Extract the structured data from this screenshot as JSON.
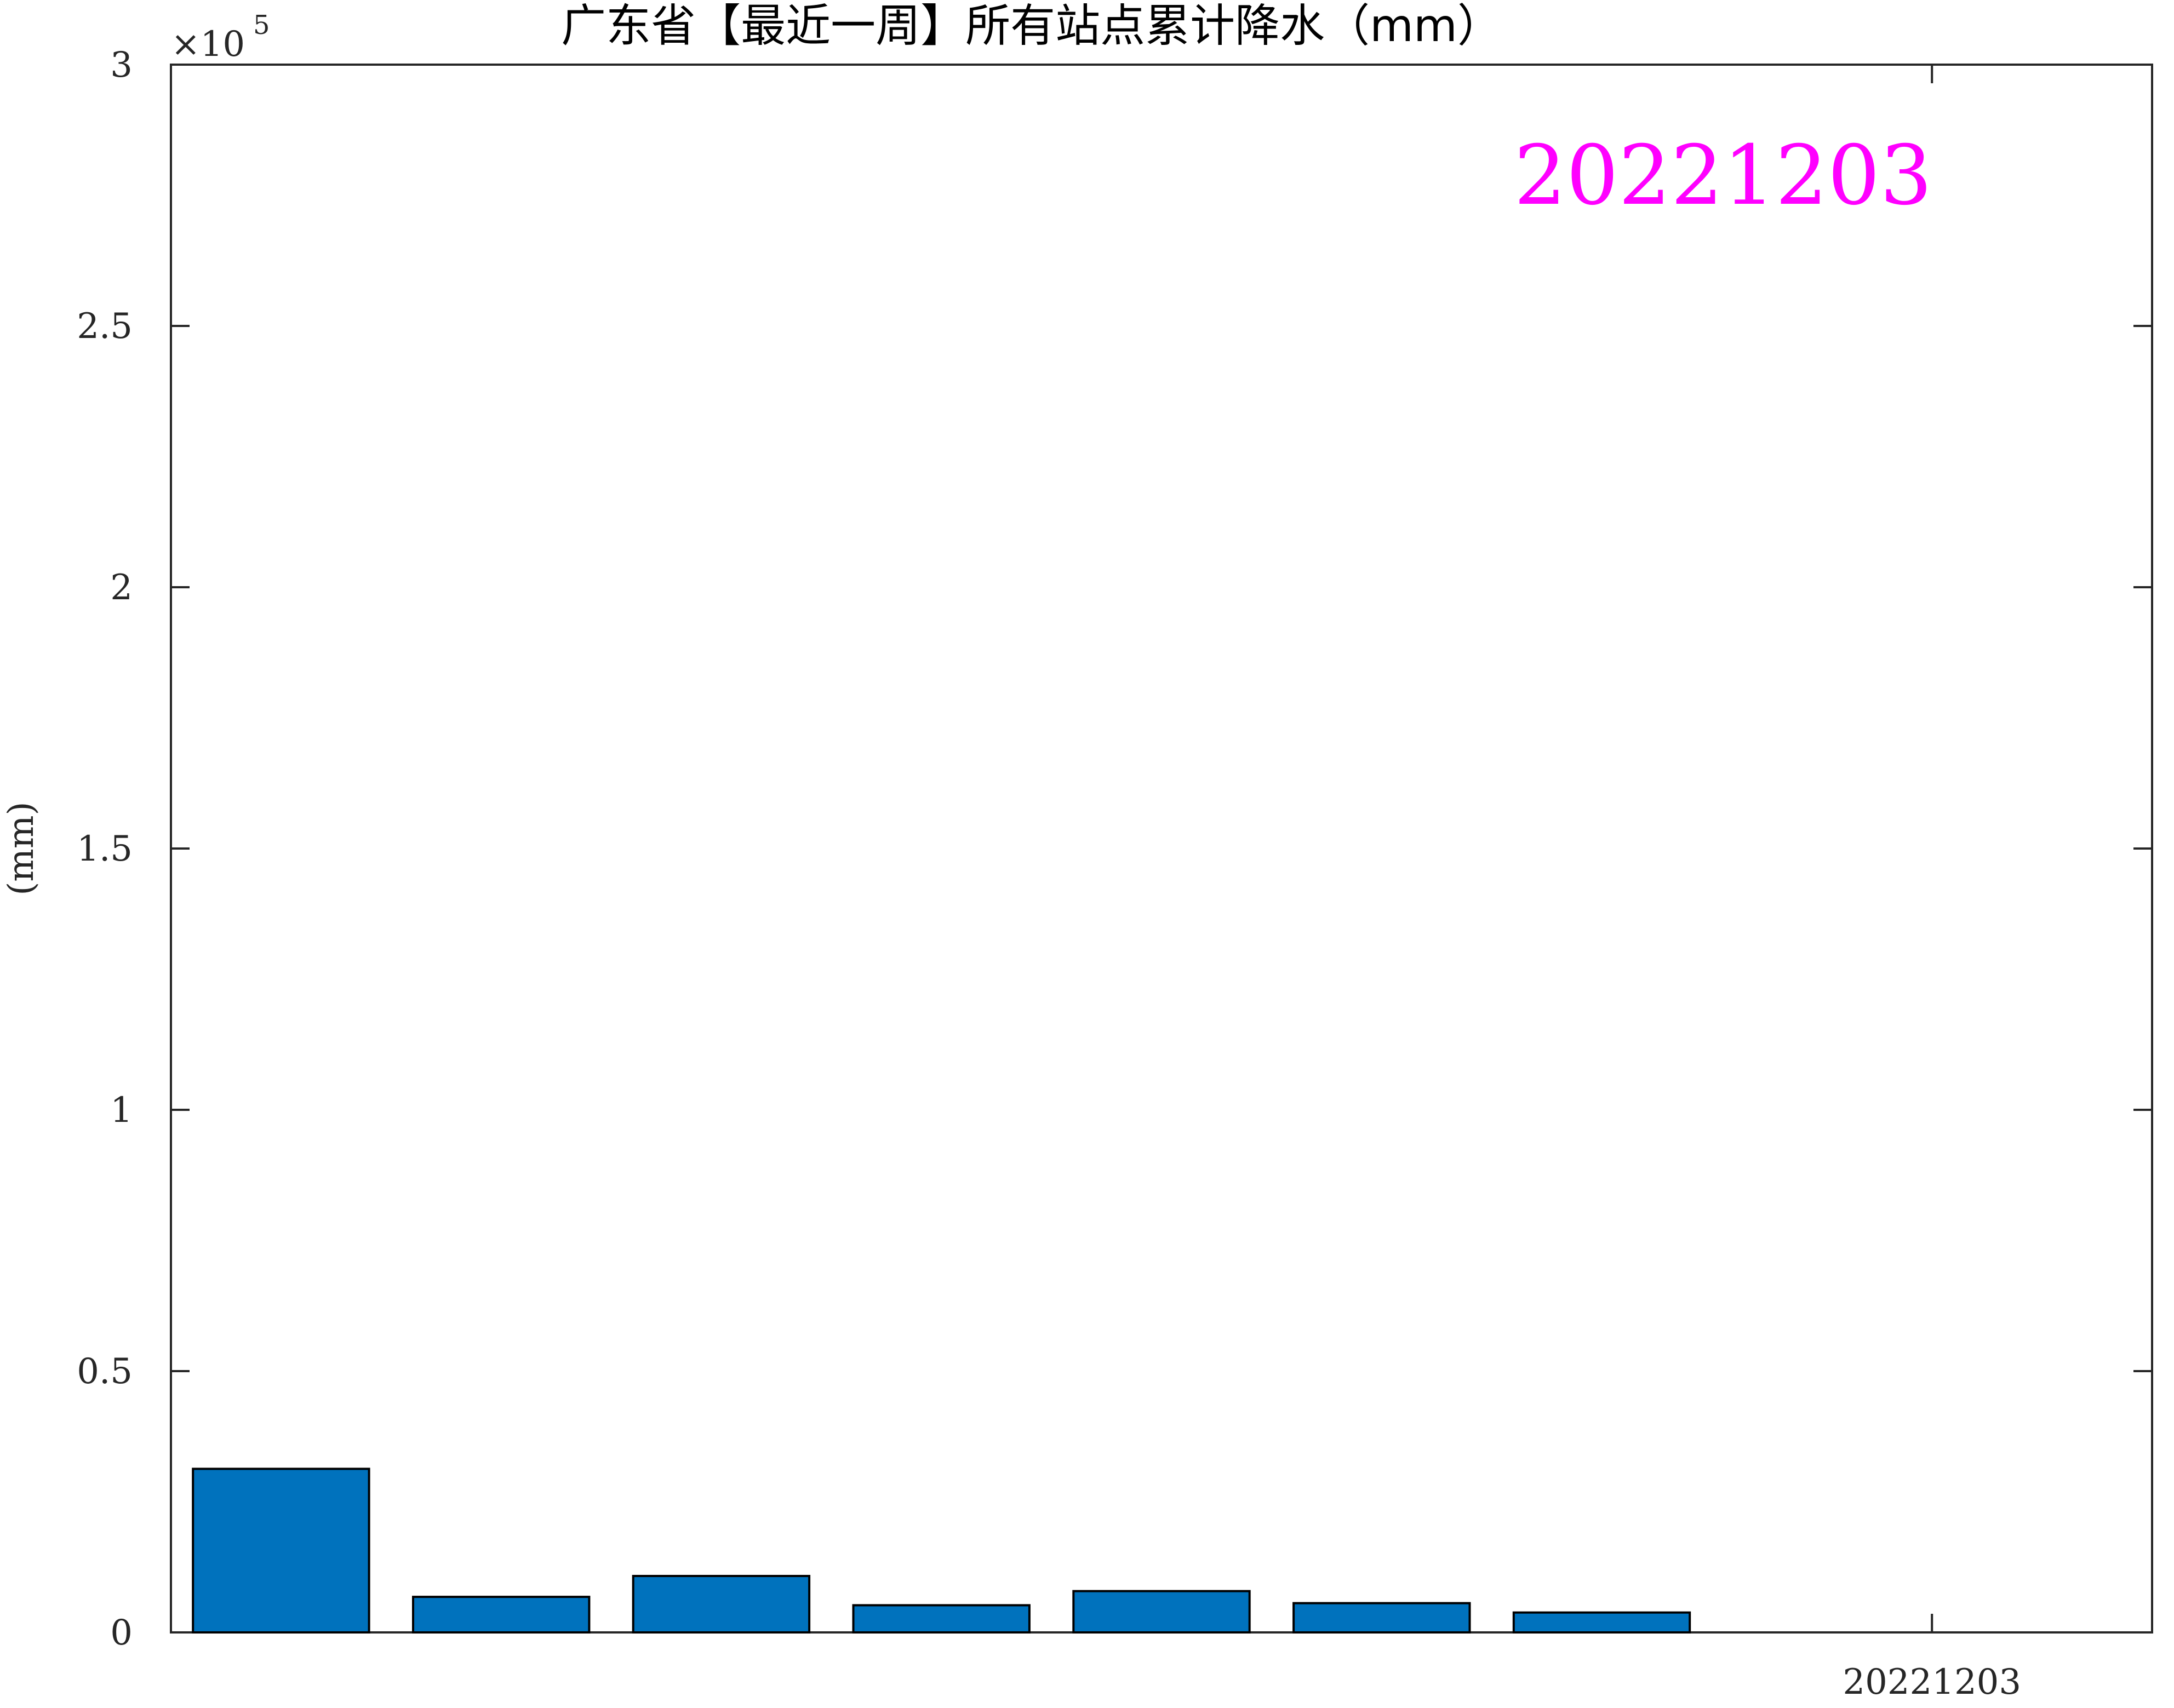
{
  "chart_data": {
    "type": "bar",
    "title": "广东省【最近一周】所有站点累计降水（mm）",
    "ylabel": "(mm)",
    "xlabel": "",
    "exponent_label": {
      "base": "×10",
      "power": "5"
    },
    "annotation": {
      "text": "20221203",
      "color": "#ff00ff"
    },
    "ylim": [
      0,
      300000
    ],
    "xlim": [
      0.5,
      9.5
    ],
    "yticks": [
      0,
      50000,
      100000,
      150000,
      200000,
      250000,
      300000
    ],
    "ytick_labels": [
      "0",
      "0.5",
      "1",
      "1.5",
      "2",
      "2.5",
      "3"
    ],
    "xticks": [
      8.5
    ],
    "xtick_labels": [
      "20221203"
    ],
    "x": [
      1,
      2,
      3,
      4,
      5,
      6,
      7
    ],
    "values": [
      31300,
      6800,
      10800,
      5200,
      7900,
      5600,
      3800
    ],
    "bar_color": "#0072bd",
    "grid": false,
    "legend": "none"
  }
}
